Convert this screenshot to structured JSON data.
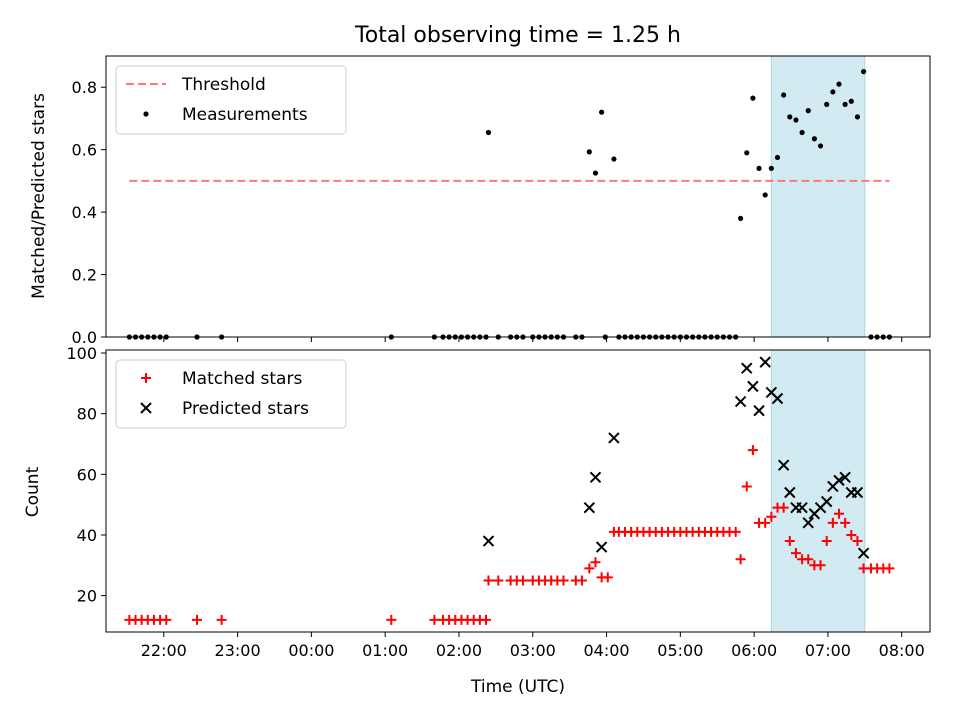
{
  "chart_data": [
    {
      "type": "scatter",
      "title": "Total observing time = 1.25 h",
      "ylabel": "Matched/Predicted stars",
      "xlim": [
        "21:13",
        "08:23"
      ],
      "ylim": [
        0,
        0.9
      ],
      "yticks": [
        0.0,
        0.2,
        0.4,
        0.6,
        0.8
      ],
      "ytick_labels": [
        "0.0",
        "0.2",
        "0.4",
        "0.6",
        "0.8"
      ],
      "xticks": [
        "22:00",
        "23:00",
        "00:00",
        "01:00",
        "02:00",
        "03:00",
        "04:00",
        "05:00",
        "06:00",
        "07:00",
        "08:00"
      ],
      "shaded_span": [
        "06:14",
        "07:30"
      ],
      "shaded_color": "#add8e6",
      "legend_position": "upper left",
      "legend": [
        {
          "label": "Threshold",
          "style": "dashed-line",
          "color": "#ff7777"
        },
        {
          "label": "Measurements",
          "style": "dot",
          "color": "#000000"
        }
      ],
      "series": [
        {
          "name": "Threshold",
          "kind": "hline",
          "value": 0.5,
          "x_start": "21:32",
          "x_end": "07:50",
          "color": "#ff7777"
        },
        {
          "name": "Measurements",
          "kind": "scatter",
          "color": "#000000",
          "points": [
            [
              "21:32",
              0
            ],
            [
              "21:37",
              0
            ],
            [
              "21:42",
              0
            ],
            [
              "21:47",
              0
            ],
            [
              "21:52",
              0
            ],
            [
              "21:57",
              0
            ],
            [
              "22:02",
              0
            ],
            [
              "22:27",
              0
            ],
            [
              "22:47",
              0
            ],
            [
              "01:05",
              0
            ],
            [
              "01:40",
              0
            ],
            [
              "01:47",
              0
            ],
            [
              "01:52",
              0
            ],
            [
              "01:57",
              0
            ],
            [
              "02:02",
              0
            ],
            [
              "02:07",
              0
            ],
            [
              "02:12",
              0
            ],
            [
              "02:17",
              0
            ],
            [
              "02:22",
              0
            ],
            [
              "02:24",
              0.655
            ],
            [
              "02:32",
              0
            ],
            [
              "02:42",
              0
            ],
            [
              "02:47",
              0
            ],
            [
              "02:52",
              0
            ],
            [
              "03:00",
              0
            ],
            [
              "03:05",
              0
            ],
            [
              "03:10",
              0
            ],
            [
              "03:15",
              0
            ],
            [
              "03:20",
              0
            ],
            [
              "03:25",
              0
            ],
            [
              "03:35",
              0
            ],
            [
              "03:40",
              0
            ],
            [
              "03:46",
              0.593
            ],
            [
              "03:51",
              0.525
            ],
            [
              "03:56",
              0.72
            ],
            [
              "04:06",
              0.57
            ],
            [
              "03:59",
              0
            ],
            [
              "04:10",
              0
            ],
            [
              "04:15",
              0
            ],
            [
              "04:20",
              0
            ],
            [
              "04:25",
              0
            ],
            [
              "04:30",
              0
            ],
            [
              "04:35",
              0
            ],
            [
              "04:40",
              0
            ],
            [
              "04:45",
              0
            ],
            [
              "04:50",
              0
            ],
            [
              "04:55",
              0
            ],
            [
              "05:00",
              0
            ],
            [
              "05:05",
              0
            ],
            [
              "05:10",
              0
            ],
            [
              "05:15",
              0
            ],
            [
              "05:20",
              0
            ],
            [
              "05:25",
              0
            ],
            [
              "05:30",
              0
            ],
            [
              "05:35",
              0
            ],
            [
              "05:40",
              0
            ],
            [
              "05:45",
              0
            ],
            [
              "05:49",
              0.38
            ],
            [
              "05:54",
              0.59
            ],
            [
              "05:59",
              0.765
            ],
            [
              "06:04",
              0.54
            ],
            [
              "06:09",
              0.455
            ],
            [
              "06:14",
              0.54
            ],
            [
              "06:19",
              0.575
            ],
            [
              "06:24",
              0.775
            ],
            [
              "06:29",
              0.705
            ],
            [
              "06:34",
              0.695
            ],
            [
              "06:39",
              0.655
            ],
            [
              "06:44",
              0.725
            ],
            [
              "06:49",
              0.635
            ],
            [
              "06:54",
              0.612
            ],
            [
              "06:59",
              0.745
            ],
            [
              "07:04",
              0.785
            ],
            [
              "07:09",
              0.81
            ],
            [
              "07:14",
              0.745
            ],
            [
              "07:19",
              0.755
            ],
            [
              "07:24",
              0.705
            ],
            [
              "07:29",
              0.85
            ],
            [
              "07:35",
              0
            ],
            [
              "07:40",
              0
            ],
            [
              "07:45",
              0
            ],
            [
              "07:50",
              0
            ]
          ]
        }
      ]
    },
    {
      "type": "scatter",
      "xlabel": "Time (UTC)",
      "ylabel": "Count",
      "xlim": [
        "21:13",
        "08:23"
      ],
      "ylim": [
        8,
        101
      ],
      "yticks": [
        20,
        40,
        60,
        80,
        100
      ],
      "ytick_labels": [
        "20",
        "40",
        "60",
        "80",
        "100"
      ],
      "xticks": [
        "22:00",
        "23:00",
        "00:00",
        "01:00",
        "02:00",
        "03:00",
        "04:00",
        "05:00",
        "06:00",
        "07:00",
        "08:00"
      ],
      "xtick_labels": [
        "22:00",
        "23:00",
        "00:00",
        "01:00",
        "02:00",
        "03:00",
        "04:00",
        "05:00",
        "06:00",
        "07:00",
        "08:00"
      ],
      "shaded_span": [
        "06:14",
        "07:30"
      ],
      "shaded_color": "#add8e6",
      "legend_position": "upper left",
      "legend": [
        {
          "label": "Matched stars",
          "style": "plus",
          "color": "#ff0000"
        },
        {
          "label": "Predicted stars",
          "style": "cross",
          "color": "#000000"
        }
      ],
      "series": [
        {
          "name": "Matched stars",
          "kind": "scatter",
          "marker": "plus",
          "color": "#ff0000",
          "points": [
            [
              "21:32",
              12
            ],
            [
              "21:37",
              12
            ],
            [
              "21:42",
              12
            ],
            [
              "21:47",
              12
            ],
            [
              "21:52",
              12
            ],
            [
              "21:57",
              12
            ],
            [
              "22:02",
              12
            ],
            [
              "22:27",
              12
            ],
            [
              "22:47",
              12
            ],
            [
              "01:05",
              12
            ],
            [
              "01:40",
              12
            ],
            [
              "01:47",
              12
            ],
            [
              "01:52",
              12
            ],
            [
              "01:57",
              12
            ],
            [
              "02:02",
              12
            ],
            [
              "02:07",
              12
            ],
            [
              "02:12",
              12
            ],
            [
              "02:17",
              12
            ],
            [
              "02:22",
              12
            ],
            [
              "02:24",
              25
            ],
            [
              "02:32",
              25
            ],
            [
              "02:42",
              25
            ],
            [
              "02:47",
              25
            ],
            [
              "02:52",
              25
            ],
            [
              "03:00",
              25
            ],
            [
              "03:05",
              25
            ],
            [
              "03:10",
              25
            ],
            [
              "03:15",
              25
            ],
            [
              "03:20",
              25
            ],
            [
              "03:25",
              25
            ],
            [
              "03:35",
              25
            ],
            [
              "03:40",
              25
            ],
            [
              "03:46",
              29
            ],
            [
              "03:51",
              31
            ],
            [
              "03:56",
              26
            ],
            [
              "04:01",
              26
            ],
            [
              "04:06",
              41
            ],
            [
              "04:10",
              41
            ],
            [
              "04:15",
              41
            ],
            [
              "04:20",
              41
            ],
            [
              "04:25",
              41
            ],
            [
              "04:30",
              41
            ],
            [
              "04:35",
              41
            ],
            [
              "04:40",
              41
            ],
            [
              "04:45",
              41
            ],
            [
              "04:50",
              41
            ],
            [
              "04:55",
              41
            ],
            [
              "05:00",
              41
            ],
            [
              "05:05",
              41
            ],
            [
              "05:10",
              41
            ],
            [
              "05:15",
              41
            ],
            [
              "05:20",
              41
            ],
            [
              "05:25",
              41
            ],
            [
              "05:30",
              41
            ],
            [
              "05:35",
              41
            ],
            [
              "05:40",
              41
            ],
            [
              "05:45",
              41
            ],
            [
              "05:49",
              32
            ],
            [
              "05:54",
              56
            ],
            [
              "05:59",
              68
            ],
            [
              "06:04",
              44
            ],
            [
              "06:09",
              44
            ],
            [
              "06:14",
              46
            ],
            [
              "06:19",
              49
            ],
            [
              "06:24",
              49
            ],
            [
              "06:29",
              38
            ],
            [
              "06:34",
              34
            ],
            [
              "06:39",
              32
            ],
            [
              "06:44",
              32
            ],
            [
              "06:49",
              30
            ],
            [
              "06:54",
              30
            ],
            [
              "06:59",
              38
            ],
            [
              "07:04",
              44
            ],
            [
              "07:09",
              47
            ],
            [
              "07:14",
              44
            ],
            [
              "07:19",
              40
            ],
            [
              "07:24",
              38
            ],
            [
              "07:29",
              29
            ],
            [
              "07:35",
              29
            ],
            [
              "07:40",
              29
            ],
            [
              "07:45",
              29
            ],
            [
              "07:50",
              29
            ]
          ]
        },
        {
          "name": "Predicted stars",
          "kind": "scatter",
          "marker": "cross",
          "color": "#000000",
          "points": [
            [
              "02:24",
              38
            ],
            [
              "03:46",
              49
            ],
            [
              "03:51",
              59
            ],
            [
              "03:56",
              36
            ],
            [
              "04:06",
              72
            ],
            [
              "05:49",
              84
            ],
            [
              "05:54",
              95
            ],
            [
              "05:59",
              89
            ],
            [
              "06:04",
              81
            ],
            [
              "06:09",
              97
            ],
            [
              "06:14",
              87
            ],
            [
              "06:19",
              85
            ],
            [
              "06:24",
              63
            ],
            [
              "06:29",
              54
            ],
            [
              "06:34",
              49
            ],
            [
              "06:39",
              49
            ],
            [
              "06:44",
              44
            ],
            [
              "06:49",
              47
            ],
            [
              "06:54",
              49
            ],
            [
              "06:59",
              51
            ],
            [
              "07:04",
              56
            ],
            [
              "07:09",
              58
            ],
            [
              "07:14",
              59
            ],
            [
              "07:19",
              54
            ],
            [
              "07:24",
              54
            ],
            [
              "07:29",
              34
            ]
          ]
        }
      ]
    }
  ]
}
